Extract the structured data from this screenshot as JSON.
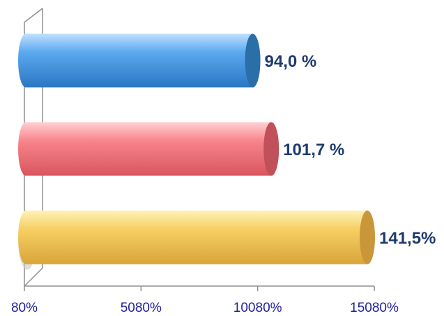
{
  "chart_data": {
    "type": "bar",
    "orientation": "horizontal",
    "style": "3d-cylinder",
    "categories": [
      "",
      "",
      ""
    ],
    "values": [
      94.0,
      101.7,
      141.5
    ],
    "value_labels": [
      "94,0 %",
      "101,7 %",
      "141,5%"
    ],
    "bar_colors": [
      "#3a8fdc",
      "#f26f78",
      "#f3c64f"
    ],
    "bar_top_colors": [
      "#2a6fa8",
      "#c0505a",
      "#c9963a"
    ],
    "x_ticks": [
      {
        "value": 80,
        "label": "80%"
      },
      {
        "value": 5080,
        "label": "5080%"
      },
      {
        "value": 10080,
        "label": "10080%"
      },
      {
        "value": 15080,
        "label": "15080%"
      }
    ],
    "xlim": [
      80,
      15080
    ],
    "tick_label_color": "#1f1fa0",
    "value_label_color": "#1f3b6e",
    "grid": false,
    "legend": "none"
  }
}
